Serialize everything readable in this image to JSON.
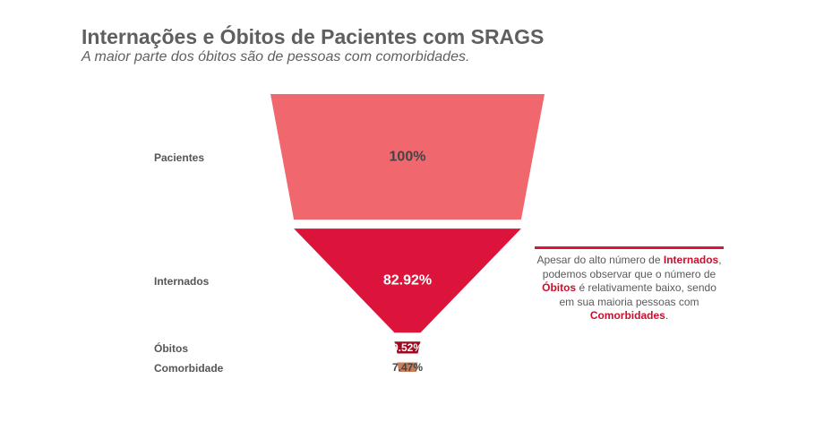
{
  "title": "Internações e Óbitos de Pacientes com SRAGS",
  "subtitle": "A maior parte dos óbitos são de pessoas com comorbidades.",
  "chart_data": {
    "type": "funnel",
    "categories": [
      "Pacientes",
      "Internados",
      "Óbitos",
      "Comorbidade"
    ],
    "values": [
      100,
      82.92,
      9.52,
      7.47
    ],
    "value_labels": [
      "100%",
      "82.92%",
      "9.52%",
      "7.47%"
    ],
    "colors": [
      "#f0686e",
      "#dc143c",
      "#a0091f",
      "#c97c5a"
    ],
    "label_colors": [
      "#444444",
      "#ffffff",
      "#ffffff",
      "#444444"
    ]
  },
  "annotation": {
    "text_1": "Apesar do alto número de ",
    "highlight_1": "Internados",
    "text_2": ", podemos observar que o número de ",
    "highlight_2": "Óbitos",
    "text_3": " é relativamente baixo, sendo em sua maioria pessoas com ",
    "highlight_3": "Comorbidades",
    "text_4": ".",
    "line_color": "#dc143c"
  }
}
